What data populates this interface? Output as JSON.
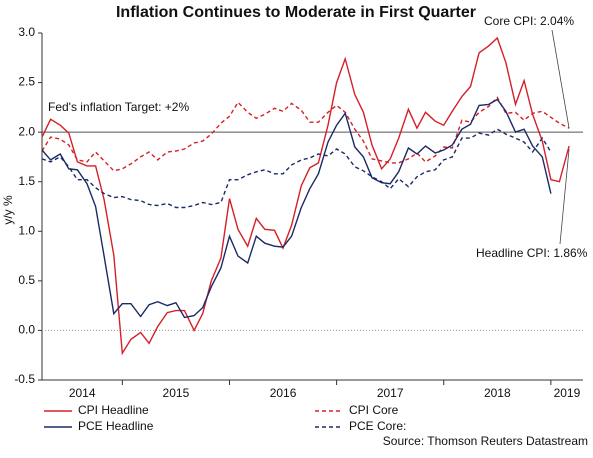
{
  "chart_data": {
    "type": "line",
    "title": "Inflation Continues to Moderate in First Quarter",
    "y_label": "y/y %",
    "source": "Source: Thomson Reuters Datastream",
    "annotations": [
      "Fed's inflation Target: +2%",
      "Core CPI: 2.04%",
      "Headline CPI: 1.86%"
    ],
    "xlim": [
      2014.25,
      2019.3
    ],
    "xticks": [
      2015,
      2016,
      2017,
      2018,
      2019
    ],
    "years": [
      2014,
      2015,
      2016,
      2017,
      2018,
      2019
    ],
    "ylim": [
      -0.5,
      3.0
    ],
    "yticks": [
      {
        "value": 3.0,
        "label": "3.0"
      },
      2.5,
      {
        "value": 2.0,
        "label": "2.0"
      },
      1.5,
      {
        "value": 1.0,
        "label": "1.0"
      },
      0.5,
      {
        "value": 0.0,
        "label": "0.0"
      },
      -0.5
    ],
    "grid": false,
    "reference_lines": [
      {
        "value": 2,
        "style": "solid",
        "color": "#555555"
      },
      {
        "value": 0,
        "style": "dotted",
        "color": "#999999"
      }
    ],
    "x": [
      2014.25,
      2014.33,
      2014.42,
      2014.5,
      2014.58,
      2014.67,
      2014.75,
      2014.83,
      2014.92,
      2015.0,
      2015.08,
      2015.17,
      2015.25,
      2015.33,
      2015.42,
      2015.5,
      2015.58,
      2015.67,
      2015.75,
      2015.83,
      2015.92,
      2016.0,
      2016.08,
      2016.17,
      2016.25,
      2016.33,
      2016.42,
      2016.5,
      2016.58,
      2016.67,
      2016.75,
      2016.83,
      2016.92,
      2017.0,
      2017.08,
      2017.17,
      2017.25,
      2017.33,
      2017.42,
      2017.5,
      2017.58,
      2017.67,
      2017.75,
      2017.83,
      2017.92,
      2018.0,
      2018.08,
      2018.17,
      2018.25,
      2018.33,
      2018.42,
      2018.5,
      2018.58,
      2018.67,
      2018.75,
      2018.83,
      2018.92,
      2019.0,
      2019.08,
      2019.17
    ],
    "series": [
      {
        "name": "CPI Headline",
        "color": "#d42027",
        "style": "solid",
        "values": [
          1.95,
          2.13,
          2.07,
          1.99,
          1.7,
          1.66,
          1.66,
          1.32,
          0.76,
          -0.23,
          -0.09,
          -0.02,
          -0.13,
          0.04,
          0.18,
          0.2,
          0.2,
          0.0,
          0.17,
          0.5,
          0.73,
          1.33,
          1.02,
          0.85,
          1.13,
          1.02,
          1.01,
          0.83,
          1.06,
          1.46,
          1.64,
          1.69,
          2.07,
          2.5,
          2.74,
          2.38,
          2.2,
          1.87,
          1.63,
          1.73,
          1.94,
          2.23,
          2.04,
          2.2,
          2.11,
          2.07,
          2.21,
          2.36,
          2.46,
          2.8,
          2.87,
          2.95,
          2.7,
          2.28,
          2.52,
          2.18,
          1.91,
          1.52,
          1.5,
          1.86
        ]
      },
      {
        "name": "CPI Core",
        "color": "#d42027",
        "style": "dashed",
        "values": [
          1.81,
          1.95,
          1.93,
          1.87,
          1.72,
          1.7,
          1.8,
          1.71,
          1.61,
          1.63,
          1.68,
          1.75,
          1.8,
          1.72,
          1.8,
          1.81,
          1.83,
          1.89,
          1.91,
          1.98,
          2.09,
          2.16,
          2.3,
          2.2,
          2.14,
          2.18,
          2.24,
          2.21,
          2.29,
          2.22,
          2.1,
          2.1,
          2.2,
          2.27,
          2.2,
          2.03,
          1.91,
          1.73,
          1.71,
          1.69,
          1.69,
          1.73,
          1.79,
          1.7,
          1.76,
          1.85,
          1.84,
          2.12,
          2.1,
          2.2,
          2.26,
          2.35,
          2.19,
          2.2,
          2.12,
          2.19,
          2.21,
          2.15,
          2.09,
          2.04
        ]
      },
      {
        "name": "PCE Headline",
        "color": "#1b2a66",
        "style": "solid",
        "values": [
          1.82,
          1.72,
          1.78,
          1.63,
          1.62,
          1.48,
          1.25,
          0.75,
          0.17,
          0.27,
          0.27,
          0.14,
          0.26,
          0.29,
          0.25,
          0.28,
          0.13,
          0.15,
          0.23,
          0.44,
          0.63,
          0.95,
          0.75,
          0.68,
          0.95,
          0.88,
          0.85,
          0.84,
          0.95,
          1.24,
          1.43,
          1.58,
          1.9,
          2.07,
          2.19,
          1.85,
          1.75,
          1.54,
          1.49,
          1.48,
          1.6,
          1.84,
          1.78,
          1.86,
          1.79,
          1.82,
          1.87,
          2.03,
          2.08,
          2.27,
          2.28,
          2.33,
          2.21,
          2.0,
          2.03,
          1.86,
          1.75,
          1.38,
          null,
          null
        ]
      },
      {
        "name": "PCE Core:",
        "color": "#1b2a66",
        "style": "dashed",
        "values": [
          1.73,
          1.7,
          1.75,
          1.65,
          1.52,
          1.52,
          1.44,
          1.38,
          1.34,
          1.35,
          1.32,
          1.31,
          1.27,
          1.26,
          1.28,
          1.24,
          1.24,
          1.26,
          1.29,
          1.27,
          1.29,
          1.52,
          1.52,
          1.57,
          1.6,
          1.62,
          1.58,
          1.58,
          1.67,
          1.72,
          1.74,
          1.78,
          1.76,
          1.83,
          1.78,
          1.65,
          1.61,
          1.55,
          1.5,
          1.43,
          1.53,
          1.45,
          1.55,
          1.6,
          1.62,
          1.72,
          1.75,
          1.94,
          1.94,
          1.99,
          1.97,
          2.03,
          1.98,
          1.94,
          1.9,
          1.8,
          1.94,
          1.8,
          null,
          null
        ]
      }
    ]
  }
}
